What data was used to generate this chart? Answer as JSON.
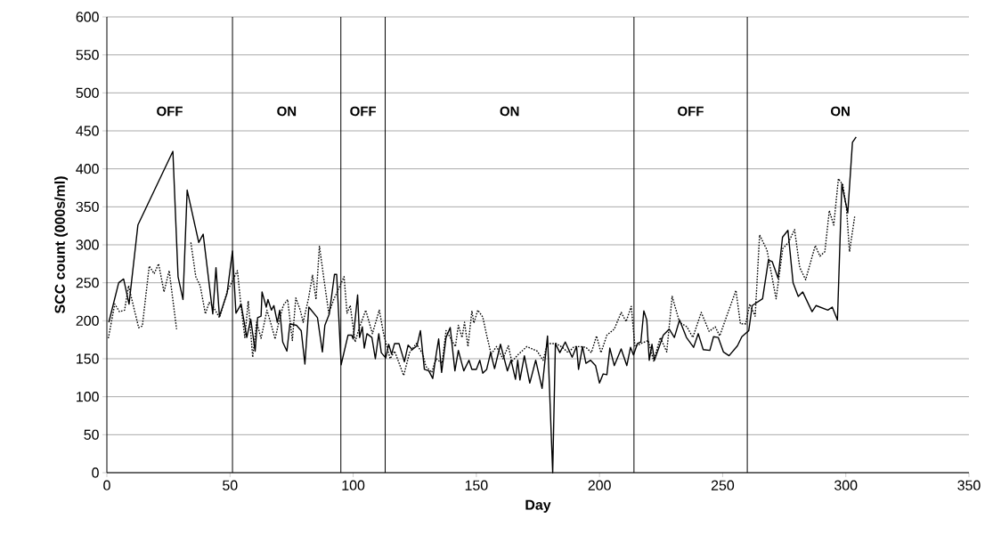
{
  "chart_data": {
    "type": "line",
    "xlabel": "Day",
    "ylabel": "SCC count (000s/ml)",
    "xlim": [
      0,
      350
    ],
    "xticks": [
      0,
      50,
      100,
      150,
      200,
      250,
      300,
      350
    ],
    "ylim": [
      0,
      600
    ],
    "yticks": [
      0,
      50,
      100,
      150,
      200,
      250,
      300,
      350,
      400,
      450,
      500,
      550,
      600
    ],
    "grid": "y",
    "marker": "none",
    "series": [
      {
        "color": "#000000",
        "line_style": "solid",
        "x": [
          0.8,
          4.8,
          6.8,
          9,
          12.6,
          26.8,
          28.9,
          30.9,
          32.6,
          37.3,
          39.1,
          43,
          44.3,
          45.7,
          48.8,
          51,
          52.4,
          54.5,
          56.8,
          58.4,
          60.2,
          61.2,
          62.6,
          63,
          64.7,
          65.4,
          66.8,
          67.8,
          69.2,
          70.2,
          71.4,
          73.1,
          74.3,
          77,
          78.9,
          80.4,
          82,
          85.5,
          87.5,
          88.5,
          90.3,
          92.4,
          93.3,
          95.1,
          97.9,
          99.4,
          100,
          101.8,
          102.6,
          103.7,
          104.5,
          105.6,
          107.6,
          109,
          110.4,
          111.4,
          113.2,
          114.4,
          115.6,
          116.8,
          118.6,
          120.8,
          122.3,
          124,
          125.9,
          127.3,
          128.9,
          130.7,
          132.3,
          133.7,
          134.7,
          135.9,
          137.7,
          139.4,
          141.3,
          142.7,
          144.9,
          147,
          148.2,
          150,
          151.4,
          152.6,
          154.2,
          155.8,
          157.4,
          159.8,
          162.6,
          164.1,
          165.9,
          166.8,
          167.7,
          169.5,
          171.7,
          174.1,
          176.7,
          178.9,
          181,
          182.1,
          183.9,
          186.1,
          188.9,
          190.7,
          191.5,
          193.1,
          194.5,
          196.4,
          198.4,
          200,
          201.5,
          203,
          204.2,
          206,
          208.8,
          211.1,
          212.6,
          213.8,
          215.4,
          216.8,
          218,
          219.2,
          220.2,
          221.3,
          222.3,
          225.9,
          228.3,
          230.4,
          232.5,
          235.3,
          238.2,
          240.1,
          242.1,
          244.8,
          246.3,
          248.2,
          250.3,
          252.6,
          256,
          257.8,
          260.6,
          262,
          266.2,
          268.6,
          270.1,
          272.5,
          274.3,
          276.5,
          278.6,
          280.7,
          282.5,
          286.3,
          287.9,
          292.7,
          294.5,
          296.6,
          298.4,
          299.1,
          300.8,
          302.7,
          304.2
        ],
        "values": [
          198,
          250,
          255,
          222,
          326,
          423,
          258,
          228,
          372,
          303,
          314,
          209,
          270,
          206,
          236,
          292,
          210,
          222,
          178,
          202,
          160,
          204,
          206,
          238,
          218,
          228,
          214,
          220,
          198,
          214,
          172,
          160,
          196,
          194,
          187,
          143,
          218,
          204,
          159,
          194,
          209,
          261,
          261,
          142,
          181,
          181,
          176,
          234,
          178,
          192,
          164,
          183,
          178,
          150,
          183,
          158,
          151,
          169,
          156,
          170,
          170,
          146,
          168,
          162,
          167,
          187,
          136,
          134,
          124,
          156,
          176,
          132,
          178,
          191,
          134,
          161,
          134,
          148,
          136,
          136,
          148,
          131,
          136,
          158,
          137,
          169,
          134,
          148,
          123,
          148,
          122,
          154,
          118,
          148,
          111,
          180,
          0,
          170,
          158,
          172,
          152,
          166,
          136,
          166,
          144,
          148,
          141,
          118,
          130,
          129,
          164,
          141,
          163,
          141,
          165,
          155,
          170,
          172,
          213,
          201,
          148,
          169,
          148,
          181,
          189,
          178,
          201,
          178,
          165,
          183,
          162,
          161,
          179,
          178,
          159,
          154,
          167,
          179,
          187,
          220,
          229,
          280,
          278,
          256,
          310,
          319,
          250,
          232,
          238,
          212,
          220,
          214,
          218,
          201,
          380,
          368,
          342,
          435,
          442
        ]
      },
      {
        "color": "#000000",
        "line_style": "dotted",
        "x": [
          0.6,
          3.2,
          5.1,
          7.2,
          8.8,
          12.9,
          14.4,
          17.2,
          19.2,
          21,
          23.2,
          25.3,
          28.3,
          31,
          34.1,
          36.1,
          37.9,
          40,
          41.5,
          43.3,
          45.7,
          48.8,
          53,
          54.5,
          56,
          57.4,
          59.2,
          60.8,
          62.6,
          65,
          66.8,
          68.3,
          69.8,
          71.6,
          73.4,
          75.3,
          76.7,
          78.5,
          79.7,
          81.9,
          83.5,
          84.9,
          86.3,
          88.5,
          90.1,
          92.1,
          96.3,
          97.5,
          98.8,
          100.8,
          102.4,
          105.1,
          107.8,
          110.6,
          112.4,
          115,
          116.8,
          120.5,
          122.9,
          125.6,
          128.3,
          129.5,
          131.9,
          133.7,
          136.1,
          137.7,
          139.4,
          141.5,
          142.7,
          144.2,
          145.2,
          146.6,
          148.2,
          149,
          150.6,
          152.6,
          154.2,
          156,
          158.2,
          160.8,
          163,
          164.4,
          166.8,
          170.5,
          174.7,
          177.1,
          178.9,
          180.1,
          182.5,
          184.9,
          187.3,
          189.7,
          192.1,
          194.5,
          196.7,
          198.8,
          200.6,
          203,
          206,
          208.8,
          210.8,
          212.9,
          214.4,
          216.8,
          219.8,
          222,
          224.7,
          227.3,
          229.5,
          232.5,
          235.5,
          237.9,
          241.3,
          244.5,
          247,
          248.8,
          255.4,
          257.2,
          259.4,
          261,
          263.2,
          265,
          268,
          271.7,
          274.4,
          276.7,
          279.2,
          281.3,
          283.7,
          287.6,
          289.5,
          291.5,
          293.3,
          295.1,
          297,
          298.8,
          300.3,
          301.5,
          303.6
        ],
        "values": [
          177,
          222,
          212,
          214,
          246,
          191,
          193,
          272,
          262,
          275,
          238,
          266,
          189,
          null,
          303,
          258,
          246,
          209,
          224,
          218,
          204,
          238,
          266,
          218,
          178,
          226,
          152,
          198,
          177,
          214,
          194,
          176,
          198,
          220,
          228,
          174,
          230,
          214,
          198,
          230,
          260,
          228,
          298,
          246,
          210,
          228,
          258,
          210,
          220,
          172,
          190,
          214,
          183,
          214,
          182,
          150,
          160,
          128,
          158,
          170,
          156,
          140,
          132,
          150,
          144,
          187,
          178,
          166,
          194,
          178,
          198,
          166,
          213,
          197,
          214,
          205,
          181,
          156,
          166,
          150,
          167,
          146,
          155,
          166,
          160,
          148,
          170,
          170,
          170,
          165,
          158,
          166,
          166,
          165,
          158,
          180,
          158,
          181,
          189,
          211,
          199,
          219,
          166,
          170,
          174,
          147,
          178,
          159,
          232,
          198,
          192,
          178,
          211,
          186,
          192,
          180,
          240,
          196,
          196,
          222,
          206,
          313,
          293,
          229,
          295,
          303,
          320,
          270,
          254,
          299,
          285,
          291,
          345,
          326,
          387,
          379,
          347,
          291,
          337
        ]
      }
    ],
    "ref_lines": [
      {
        "axis": "x",
        "value": 51,
        "color": "#000000"
      },
      {
        "axis": "x",
        "value": 95,
        "color": "#000000"
      },
      {
        "axis": "x",
        "value": 113,
        "color": "#000000"
      },
      {
        "axis": "x",
        "value": 214,
        "color": "#000000"
      },
      {
        "axis": "x",
        "value": 260,
        "color": "#000000"
      }
    ],
    "annotations": [
      "OFF",
      "ON",
      "OFF",
      "ON",
      "OFF",
      "ON"
    ]
  }
}
